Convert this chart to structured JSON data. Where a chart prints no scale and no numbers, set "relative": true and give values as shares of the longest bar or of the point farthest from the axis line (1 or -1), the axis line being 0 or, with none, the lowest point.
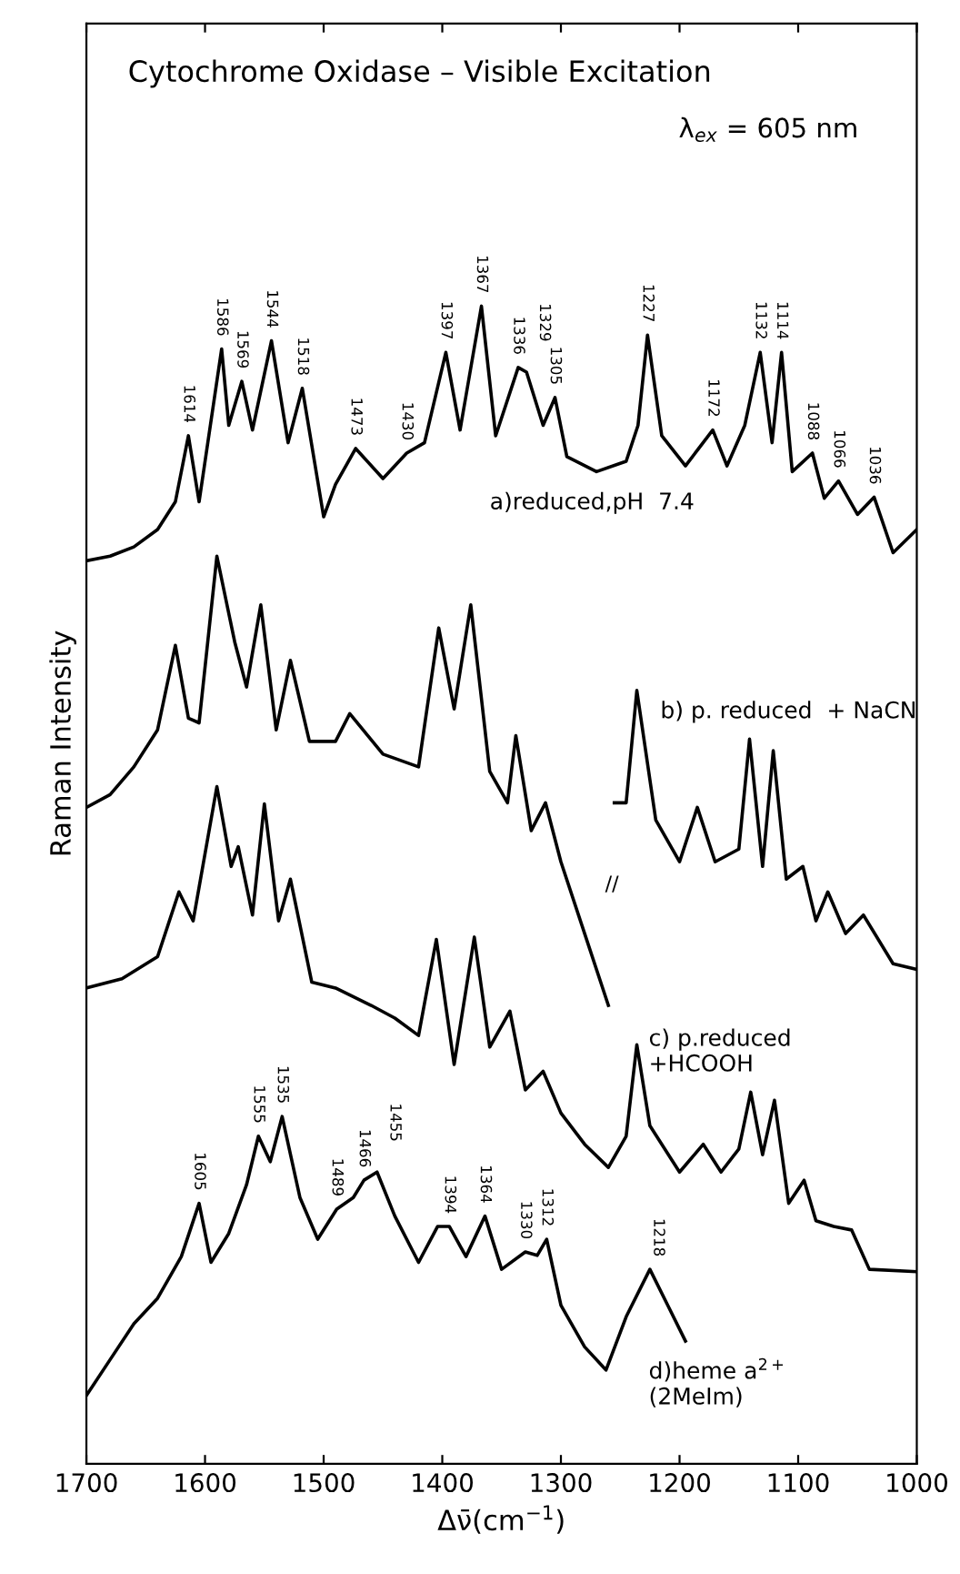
{
  "chart_data": {
    "type": "line",
    "title": "Cytochrome Oxidase – Visible Excitation",
    "subtitle": "λ$_{ex}$ = 605 nm",
    "xlabel": "Δν̄(cm$^{−1}$)",
    "ylabel": "Raman Intensity",
    "relative": true,
    "xlim": [
      1700,
      1000
    ],
    "xticks": [
      1700,
      1600,
      1500,
      1400,
      1300,
      1200,
      1100,
      1000
    ],
    "tick_labels": "x",
    "grid": false,
    "legend": false,
    "marker": "none",
    "line_style": "solid",
    "series": [
      {
        "name": "a)reduced,pH  7.4",
        "color": "#000000",
        "x": [
          1700,
          1680,
          1660,
          1640,
          1625,
          1614,
          1605,
          1586,
          1580,
          1569,
          1560,
          1544,
          1530,
          1518,
          1500,
          1490,
          1473,
          1450,
          1430,
          1415,
          1397,
          1385,
          1367,
          1355,
          1336,
          1329,
          1315,
          1305,
          1295,
          1270,
          1245,
          1235,
          1227,
          1215,
          1195,
          1172,
          1160,
          1145,
          1132,
          1122,
          1114,
          1105,
          1088,
          1078,
          1066,
          1050,
          1036,
          1020,
          1000
        ],
        "values": [
          0.78,
          0.784,
          0.792,
          0.807,
          0.831,
          0.888,
          0.831,
          0.963,
          0.897,
          0.935,
          0.893,
          0.97,
          0.882,
          0.929,
          0.818,
          0.846,
          0.877,
          0.851,
          0.873,
          0.882,
          0.96,
          0.893,
          1.0,
          0.888,
          0.947,
          0.943,
          0.897,
          0.921,
          0.87,
          0.857,
          0.866,
          0.897,
          0.975,
          0.888,
          0.862,
          0.893,
          0.862,
          0.897,
          0.96,
          0.882,
          0.96,
          0.857,
          0.873,
          0.834,
          0.849,
          0.82,
          0.835,
          0.787,
          0.807
        ]
      },
      {
        "name": "b) p. reduced  + NaCN",
        "color": "#000000",
        "x": [
          1700,
          1680,
          1660,
          1640,
          1625,
          1614,
          1605,
          1590,
          1575,
          1565,
          1553,
          1540,
          1528,
          1512,
          1490,
          1478,
          1450,
          1420,
          1403,
          1390,
          1376,
          1360,
          1345,
          1338,
          1325,
          1313,
          1300,
          1280,
          1260,
          1257,
          1255,
          1245,
          1236,
          1220,
          1200,
          1185,
          1170,
          1150,
          1141,
          1130,
          1121,
          1110,
          1096,
          1085,
          1075,
          1060,
          1045,
          1020,
          1000
        ],
        "values": [
          0.567,
          0.578,
          0.602,
          0.634,
          0.707,
          0.644,
          0.64,
          0.784,
          0.71,
          0.671,
          0.742,
          0.634,
          0.694,
          0.624,
          0.624,
          0.648,
          0.613,
          0.602,
          0.722,
          0.652,
          0.742,
          0.598,
          0.571,
          0.629,
          0.547,
          0.571,
          0.52,
          0.458,
          0.396,
          null,
          0.571,
          0.571,
          0.668,
          0.556,
          0.52,
          0.567,
          0.52,
          0.531,
          0.626,
          0.516,
          0.616,
          0.505,
          0.516,
          0.469,
          0.494,
          0.458,
          0.474,
          0.432,
          0.427
        ]
      },
      {
        "name": "c) p.reduced\n+HCOOH",
        "color": "#000000",
        "x": [
          1700,
          1670,
          1640,
          1622,
          1610,
          1590,
          1578,
          1572,
          1560,
          1550,
          1538,
          1528,
          1510,
          1490,
          1460,
          1440,
          1420,
          1405,
          1390,
          1373,
          1360,
          1343,
          1330,
          1315,
          1300,
          1280,
          1260,
          1245,
          1236,
          1225,
          1200,
          1180,
          1165,
          1150,
          1140,
          1130,
          1120,
          1108,
          1095,
          1085,
          1070,
          1055,
          1040,
          1000
        ],
        "values": [
          0.411,
          0.419,
          0.438,
          0.494,
          0.469,
          0.585,
          0.516,
          0.533,
          0.474,
          0.57,
          0.469,
          0.505,
          0.416,
          0.411,
          0.396,
          0.385,
          0.37,
          0.453,
          0.345,
          0.455,
          0.36,
          0.391,
          0.323,
          0.339,
          0.303,
          0.276,
          0.256,
          0.283,
          0.362,
          0.292,
          0.252,
          0.276,
          0.252,
          0.272,
          0.321,
          0.267,
          0.314,
          0.225,
          0.245,
          0.21,
          0.205,
          0.202,
          0.168,
          0.166
        ]
      },
      {
        "name": "d)heme a$^{2+}$\n(2MeIm)",
        "color": "#000000",
        "x": [
          1700,
          1680,
          1660,
          1640,
          1620,
          1605,
          1595,
          1580,
          1565,
          1555,
          1545,
          1535,
          1520,
          1505,
          1489,
          1475,
          1466,
          1455,
          1440,
          1420,
          1404,
          1394,
          1380,
          1364,
          1350,
          1330,
          1320,
          1312,
          1300,
          1280,
          1262,
          1245,
          1225,
          1210,
          1195
        ],
        "values": [
          0.059,
          0.09,
          0.121,
          0.143,
          0.179,
          0.225,
          0.174,
          0.199,
          0.241,
          0.283,
          0.261,
          0.3,
          0.23,
          0.194,
          0.22,
          0.23,
          0.245,
          0.252,
          0.214,
          0.174,
          0.205,
          0.205,
          0.179,
          0.214,
          0.168,
          0.183,
          0.18,
          0.194,
          0.137,
          0.101,
          0.081,
          0.127,
          0.168,
          0.137,
          0.106
        ]
      }
    ],
    "annotations": [
      {
        "text": "1614",
        "x": 1614,
        "y": 0.888
      },
      {
        "text": "1586",
        "x": 1586,
        "y": 0.963
      },
      {
        "text": "1569",
        "x": 1569,
        "y": 0.935
      },
      {
        "text": "1544",
        "x": 1544,
        "y": 0.97
      },
      {
        "text": "1518",
        "x": 1518,
        "y": 0.929
      },
      {
        "text": "1473",
        "x": 1473,
        "y": 0.877
      },
      {
        "text": "1430",
        "x": 1430,
        "y": 0.873
      },
      {
        "text": "1397",
        "x": 1397,
        "y": 0.96
      },
      {
        "text": "1367",
        "x": 1367,
        "y": 1.0
      },
      {
        "text": "1336",
        "x": 1336,
        "y": 0.947
      },
      {
        "text": "1329",
        "x": 1329,
        "y": 0.943
      },
      {
        "text": "1305",
        "x": 1305,
        "y": 0.921
      },
      {
        "text": "1227",
        "x": 1227,
        "y": 0.975
      },
      {
        "text": "1172",
        "x": 1172,
        "y": 0.893
      },
      {
        "text": "1132",
        "x": 1132,
        "y": 0.96
      },
      {
        "text": "1114",
        "x": 1114,
        "y": 0.96
      },
      {
        "text": "1088",
        "x": 1088,
        "y": 0.873
      },
      {
        "text": "1066",
        "x": 1066,
        "y": 0.849
      },
      {
        "text": "1036",
        "x": 1036,
        "y": 0.835
      },
      "//",
      {
        "text": "1605",
        "x": 1605,
        "y": 0.225
      },
      {
        "text": "1555",
        "x": 1555,
        "y": 0.283
      },
      {
        "text": "1535",
        "x": 1535,
        "y": 0.3
      },
      {
        "text": "1489",
        "x": 1489,
        "y": 0.22
      },
      {
        "text": "1466",
        "x": 1466,
        "y": 0.245
      },
      {
        "text": "1455",
        "x": 1455,
        "y": 0.252
      },
      {
        "text": "1394",
        "x": 1394,
        "y": 0.205
      },
      {
        "text": "1364",
        "x": 1364,
        "y": 0.214
      },
      {
        "text": "1330",
        "x": 1330,
        "y": 0.183
      },
      {
        "text": "1312",
        "x": 1312,
        "y": 0.194
      },
      {
        "text": "1218",
        "x": 1218,
        "y": 0.168
      }
    ]
  }
}
